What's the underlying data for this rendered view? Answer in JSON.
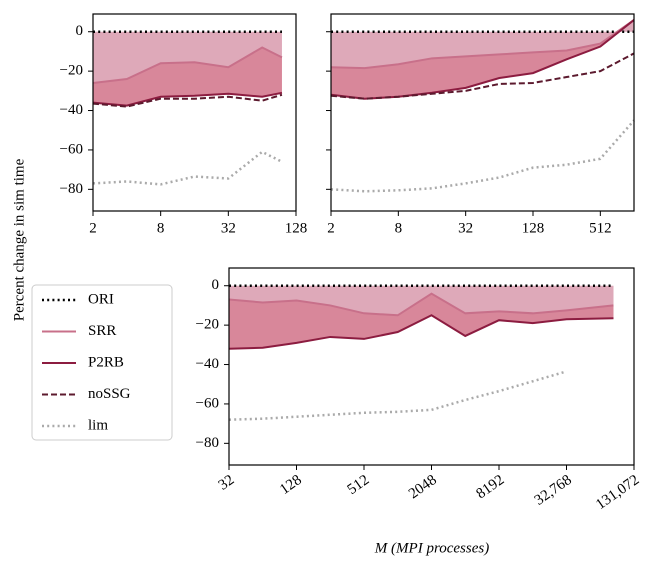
{
  "ylabel": "Percent change in sim time",
  "xlabel": "M (MPI processes)",
  "chart_data": [
    {
      "type": "line",
      "xscale": "log2",
      "xlim": [
        2,
        128
      ],
      "ylim": [
        -91,
        9
      ],
      "xticks": [
        2,
        8,
        32,
        128
      ],
      "yticks": [
        0,
        {
          "value": -20,
          "label": "−20"
        },
        {
          "value": -40,
          "label": "−40"
        },
        {
          "value": -60,
          "label": "−60"
        },
        {
          "value": -80,
          "label": "−80"
        }
      ],
      "sharey": false,
      "x": [
        2,
        4,
        8,
        16,
        32,
        64,
        96
      ],
      "series": [
        {
          "name": "ORI",
          "color": "#000000",
          "linestyle": "dotted",
          "values": [
            0,
            0,
            0,
            0,
            0,
            0,
            0
          ]
        },
        {
          "name": "SRR",
          "color": "#c8708a",
          "linestyle": "solid",
          "values": [
            -26,
            -24,
            -16,
            -15.5,
            -18,
            -8,
            -13
          ]
        },
        {
          "name": "P2RB",
          "color": "#8c1c40",
          "linestyle": "solid",
          "values": [
            -36,
            -37.5,
            -33,
            -32.5,
            -31.5,
            -33,
            -31
          ]
        },
        {
          "name": "noSSG",
          "color": "#5c1a2e",
          "linestyle": "dashed",
          "values": [
            -36.5,
            -38,
            -34,
            -34,
            -33,
            -35,
            -32
          ]
        },
        {
          "name": "lim",
          "color": "#aaaaaa",
          "linestyle": "dotted",
          "values": [
            -77,
            -76,
            -77.5,
            -73.5,
            -74.5,
            -61,
            -66
          ]
        }
      ]
    },
    {
      "type": "line",
      "xscale": "log2",
      "xlim": [
        2,
        1024
      ],
      "ylim": [
        -91,
        9
      ],
      "xticks": [
        2,
        8,
        32,
        128,
        512
      ],
      "yticks": [
        0,
        -20,
        -40,
        -60,
        -80
      ],
      "sharey": true,
      "x": [
        2,
        4,
        8,
        16,
        32,
        64,
        128,
        256,
        512,
        1024
      ],
      "series": [
        {
          "name": "ORI",
          "color": "#000000",
          "linestyle": "dotted",
          "values": [
            0,
            0,
            0,
            0,
            0,
            0,
            0,
            0,
            0,
            0
          ]
        },
        {
          "name": "SRR",
          "color": "#c8708a",
          "linestyle": "solid",
          "values": [
            -18,
            -18.5,
            -16.5,
            -13.5,
            -12.5,
            -11.5,
            -10.5,
            -9.5,
            -6,
            6
          ]
        },
        {
          "name": "P2RB",
          "color": "#8c1c40",
          "linestyle": "solid",
          "values": [
            -32,
            -34,
            -33,
            -31,
            -28.5,
            -23.5,
            -21,
            -14,
            -7.5,
            6
          ]
        },
        {
          "name": "noSSG",
          "color": "#5c1a2e",
          "linestyle": "dashed",
          "values": [
            -32.5,
            -34,
            -33,
            -31.5,
            -30,
            -26.5,
            -26,
            -23,
            -20,
            -11
          ]
        },
        {
          "name": "lim",
          "color": "#aaaaaa",
          "linestyle": "dotted",
          "values": [
            -80,
            -81,
            -80.5,
            -79.5,
            -77,
            -74,
            -69,
            -67.5,
            -64.5,
            -45
          ]
        }
      ]
    },
    {
      "type": "line",
      "xscale": "log2",
      "xlim": [
        32,
        131072
      ],
      "ylim": [
        -91,
        9
      ],
      "xticks": [
        32,
        128,
        512,
        2048,
        8192,
        {
          "value": 32768,
          "label": "32,768"
        },
        {
          "value": 131072,
          "label": "131,072"
        }
      ],
      "yticks": [
        0,
        {
          "value": -20,
          "label": "−20"
        },
        {
          "value": -40,
          "label": "−40"
        },
        {
          "value": -60,
          "label": "−60"
        },
        {
          "value": -80,
          "label": "−80"
        }
      ],
      "sharey": false,
      "x": [
        32,
        64,
        128,
        256,
        512,
        1024,
        2048,
        4096,
        8192,
        16384,
        32768,
        86016
      ],
      "series": [
        {
          "name": "ORI",
          "color": "#000000",
          "linestyle": "dotted",
          "values": [
            0,
            0,
            0,
            0,
            0,
            0,
            0,
            0,
            0,
            0,
            0,
            0
          ]
        },
        {
          "name": "SRR",
          "color": "#c8708a",
          "linestyle": "solid",
          "values": [
            -7,
            -8.5,
            -7.5,
            -10,
            -14,
            -15,
            -4,
            -14,
            -13,
            -14,
            -12.5,
            -10
          ]
        },
        {
          "name": "P2RB",
          "color": "#8c1c40",
          "linestyle": "solid",
          "values": [
            -32,
            -31.5,
            -29,
            -26,
            -27,
            -23.5,
            -15,
            -25.5,
            -17.5,
            -19,
            -17,
            -16.5
          ]
        },
        {
          "name": "lim",
          "color": "#aaaaaa",
          "linestyle": "dotted",
          "values": [
            -68,
            -67.5,
            -66.5,
            -65.5,
            -64.5,
            -64,
            -63,
            -58,
            -53.5,
            -48.5,
            -43.5,
            null
          ]
        }
      ]
    }
  ]
}
